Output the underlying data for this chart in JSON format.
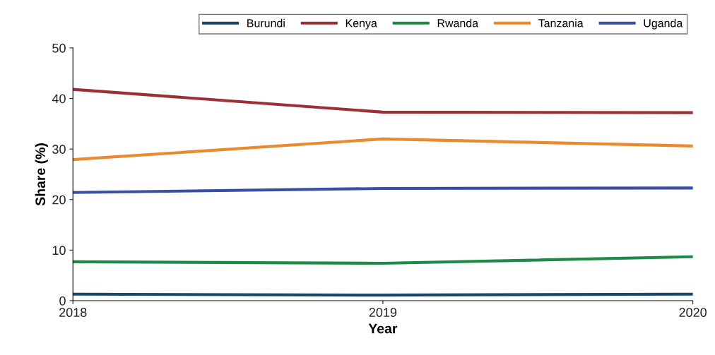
{
  "chart_data": {
    "type": "line",
    "xlabel": "Year",
    "ylabel": "Share (%)",
    "x": [
      2018,
      2019,
      2020
    ],
    "xlim": [
      2018,
      2020
    ],
    "xticks": [
      2018,
      2019,
      2020
    ],
    "ylim": [
      0,
      50
    ],
    "yticks": [
      0,
      10,
      20,
      30,
      40,
      50
    ],
    "grid": false,
    "legend": "top right",
    "marker": "none",
    "line_style": "solid",
    "series": [
      {
        "name": "Burundi",
        "color": "#17466e",
        "values": [
          1.3,
          1.1,
          1.3
        ]
      },
      {
        "name": "Kenya",
        "color": "#9b3135",
        "values": [
          41.8,
          37.3,
          37.2
        ]
      },
      {
        "name": "Rwanda",
        "color": "#1f8a47",
        "values": [
          7.7,
          7.4,
          8.7
        ]
      },
      {
        "name": "Tanzania",
        "color": "#ea8a2e",
        "values": [
          27.9,
          32.0,
          30.6
        ]
      },
      {
        "name": "Uganda",
        "color": "#3a4fa3",
        "values": [
          21.4,
          22.2,
          22.3
        ]
      }
    ]
  }
}
